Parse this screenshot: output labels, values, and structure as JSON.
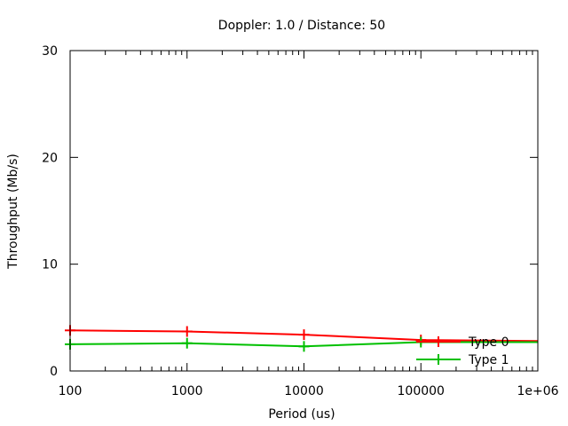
{
  "chart_data": {
    "type": "line",
    "title": "Doppler: 1.0 / Distance: 50",
    "xlabel": "Period (us)",
    "ylabel": "Throughput (Mb/s)",
    "xscale": "log",
    "xlim": [
      100,
      1000000
    ],
    "ylim": [
      0,
      30
    ],
    "xticks": [
      100,
      1000,
      10000,
      100000,
      1000000
    ],
    "xtick_labels": [
      "100",
      "1000",
      "10000",
      "100000",
      "1e+06"
    ],
    "yticks": [
      0,
      10,
      20,
      30
    ],
    "ytick_labels": [
      "0",
      "10",
      "20",
      "30"
    ],
    "grid": false,
    "legend_position": "bottom-right",
    "series": [
      {
        "name": "Type 0",
        "color": "#ff0000",
        "x": [
          100,
          1000,
          10000,
          100000,
          1000000
        ],
        "y": [
          3.8,
          3.7,
          3.4,
          2.9,
          2.8
        ],
        "marked_x": [
          100,
          1000,
          10000,
          100000
        ]
      },
      {
        "name": "Type 1",
        "color": "#00c000",
        "x": [
          100,
          1000,
          10000,
          100000,
          1000000
        ],
        "y": [
          2.5,
          2.6,
          2.3,
          2.7,
          2.7
        ],
        "marked_x": [
          100,
          1000,
          10000,
          100000
        ]
      }
    ]
  }
}
